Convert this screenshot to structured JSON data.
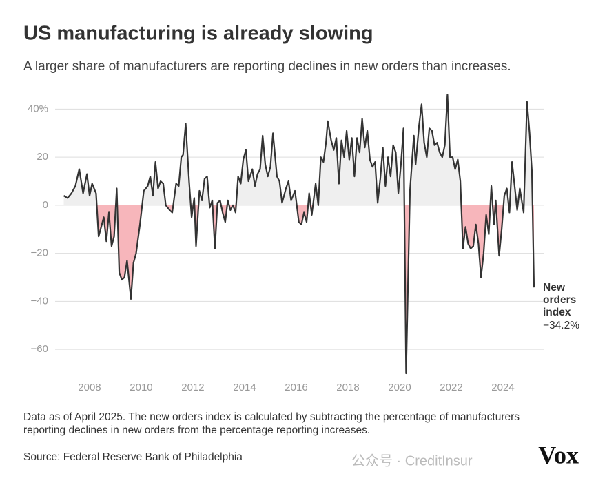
{
  "chart_data": {
    "type": "line",
    "title": "US manufacturing is already slowing",
    "subtitle": "A larger share of manufacturers are reporting declines in new orders than increases.",
    "note": "Data as of April 2025. The new orders index is calculated by subtracting the percentage of manufacturers reporting declines in new orders from the percentage reporting increases.",
    "source": "Source: Federal Reserve Bank of Philadelphia",
    "logo": "Vox",
    "watermark": "公众号 · CreditInsur",
    "annotation": {
      "label": "New orders index",
      "value_label": "−34.2%"
    },
    "xlim": [
      2006.55,
      2025.6
    ],
    "xticks": [
      2008,
      2010,
      2012,
      2014,
      2016,
      2018,
      2020,
      2022,
      2024
    ],
    "ylim": [
      -72,
      47
    ],
    "yticks": [
      {
        "value": 40,
        "label": "40%"
      },
      20,
      0,
      {
        "value": -20,
        "label": "−20"
      },
      {
        "value": -40,
        "label": "−40"
      },
      {
        "value": -60,
        "label": "−60"
      }
    ],
    "grid": true,
    "series": [
      {
        "name": "New orders index",
        "color": "#333333",
        "positive_color": "#efefef",
        "negative_color": "#f7b6bb",
        "x": [
          2007.0,
          2007.15,
          2007.3,
          2007.45,
          2007.6,
          2007.75,
          2007.9,
          2008.0,
          2008.1,
          2008.25,
          2008.35,
          2008.45,
          2008.55,
          2008.65,
          2008.75,
          2008.85,
          2008.95,
          2009.05,
          2009.15,
          2009.25,
          2009.35,
          2009.45,
          2009.6,
          2009.7,
          2009.8,
          2009.95,
          2010.1,
          2010.25,
          2010.35,
          2010.45,
          2010.55,
          2010.65,
          2010.75,
          2010.85,
          2010.95,
          2011.1,
          2011.2,
          2011.35,
          2011.45,
          2011.55,
          2011.62,
          2011.72,
          2011.85,
          2011.95,
          2012.05,
          2012.12,
          2012.25,
          2012.35,
          2012.45,
          2012.55,
          2012.65,
          2012.75,
          2012.85,
          2012.95,
          2013.05,
          2013.15,
          2013.25,
          2013.35,
          2013.45,
          2013.55,
          2013.65,
          2013.75,
          2013.85,
          2013.95,
          2014.05,
          2014.15,
          2014.3,
          2014.4,
          2014.5,
          2014.6,
          2014.7,
          2014.8,
          2014.9,
          2015.0,
          2015.1,
          2015.25,
          2015.35,
          2015.45,
          2015.6,
          2015.7,
          2015.8,
          2015.95,
          2016.1,
          2016.2,
          2016.3,
          2016.4,
          2016.5,
          2016.6,
          2016.75,
          2016.85,
          2016.95,
          2017.05,
          2017.15,
          2017.22,
          2017.35,
          2017.45,
          2017.55,
          2017.65,
          2017.75,
          2017.85,
          2017.95,
          2018.05,
          2018.15,
          2018.25,
          2018.35,
          2018.45,
          2018.55,
          2018.65,
          2018.75,
          2018.85,
          2018.95,
          2019.05,
          2019.15,
          2019.25,
          2019.35,
          2019.45,
          2019.55,
          2019.65,
          2019.75,
          2019.85,
          2019.95,
          2020.05,
          2020.15,
          2020.25,
          2020.4,
          2020.55,
          2020.62,
          2020.75,
          2020.85,
          2020.95,
          2021.05,
          2021.15,
          2021.25,
          2021.35,
          2021.45,
          2021.55,
          2021.65,
          2021.75,
          2021.85,
          2021.95,
          2022.05,
          2022.15,
          2022.25,
          2022.35,
          2022.45,
          2022.55,
          2022.65,
          2022.75,
          2022.85,
          2022.95,
          2023.05,
          2023.15,
          2023.25,
          2023.35,
          2023.45,
          2023.55,
          2023.65,
          2023.72,
          2023.85,
          2023.95,
          2024.05,
          2024.15,
          2024.25,
          2024.35,
          2024.45,
          2024.55,
          2024.65,
          2024.8,
          2024.93,
          2025.03,
          2025.12,
          2025.2
        ],
        "values": [
          4,
          3,
          5,
          8,
          15,
          5,
          13,
          4,
          9,
          5,
          -13,
          -9,
          -5,
          -15,
          -3,
          -17,
          -13,
          7,
          -28,
          -31,
          -30,
          -23,
          -39,
          -24,
          -20,
          -8,
          6,
          8,
          12,
          4,
          18,
          7,
          10,
          9,
          0,
          -2,
          -3,
          9,
          8,
          20,
          21,
          34,
          10,
          -5,
          3,
          -17,
          6,
          2,
          11,
          12,
          -1,
          2,
          -18,
          1,
          2,
          -3,
          -7,
          2,
          -2,
          0,
          -3,
          12,
          9,
          19,
          23,
          10,
          15,
          8,
          13,
          15,
          29,
          17,
          12,
          16,
          30,
          12,
          10,
          1,
          7,
          10,
          2,
          6,
          -7,
          -8,
          -3,
          -7,
          5,
          -4,
          9,
          0,
          20,
          18,
          26,
          35,
          27,
          23,
          28,
          9,
          27,
          20,
          31,
          19,
          28,
          12,
          28,
          22,
          36,
          24,
          31,
          19,
          16,
          18,
          1,
          11,
          24,
          8,
          20,
          12,
          25,
          22,
          5,
          17,
          32,
          -70,
          6,
          29,
          17,
          33,
          42,
          26,
          20,
          32,
          31,
          25,
          26,
          22,
          20,
          25,
          46,
          20,
          20,
          15,
          19,
          10,
          -18,
          -9,
          -16,
          -18,
          -17,
          -8,
          -16,
          -30,
          -20,
          -4,
          -12,
          8,
          -8,
          2,
          -21,
          -10,
          4,
          7,
          -3,
          18,
          8,
          -2,
          7,
          -3,
          43,
          30,
          14,
          -34.2
        ]
      }
    ]
  }
}
